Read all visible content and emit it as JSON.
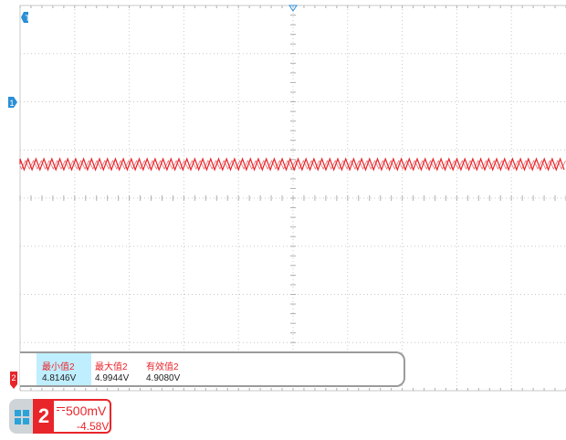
{
  "colors": {
    "channel": "#e8252a",
    "grid": "#c8c8c8",
    "trigger": "#2a8fd6",
    "highlight": "#bfeeff"
  },
  "markers": {
    "trigger_level": "T",
    "channel1_ref": "1",
    "channel2_ref": "2"
  },
  "measurements": [
    {
      "label": "最小值2",
      "value": "4.8146V",
      "highlighted": true
    },
    {
      "label": "最大值2",
      "value": "4.9944V",
      "highlighted": false
    },
    {
      "label": "有效值2",
      "value": "4.9080V",
      "highlighted": false
    }
  ],
  "channel": {
    "number": "2",
    "scale": "500mV",
    "offset": "-4.58V",
    "coupling_icon": "dc-coupling-icon"
  },
  "chart_data": {
    "type": "line",
    "title": "",
    "series": [
      {
        "name": "",
        "description_min": 4.8146,
        "description_max": 4.9944
      }
    ],
    "grid": true
  }
}
